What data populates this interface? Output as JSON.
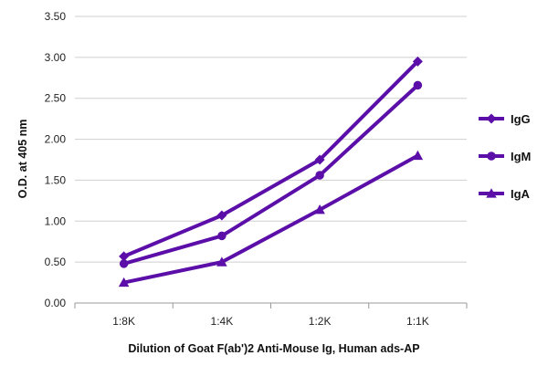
{
  "chart_data": {
    "type": "line",
    "title": "",
    "xlabel": "Dilution of Goat F(ab')2 Anti-Mouse Ig, Human ads-AP",
    "ylabel": "O.D. at 405 nm",
    "categories": [
      "1:8K",
      "1:4K",
      "1:2K",
      "1:1K"
    ],
    "ylim": [
      0,
      3.5
    ],
    "yticks": [
      "0.00",
      "0.50",
      "1.00",
      "1.50",
      "2.00",
      "2.50",
      "3.00",
      "3.50"
    ],
    "grid": true,
    "legend_position": "right",
    "series": [
      {
        "name": "IgG",
        "marker": "diamond",
        "color": "#5b0fa8",
        "values": [
          0.57,
          1.07,
          1.75,
          2.95
        ]
      },
      {
        "name": "IgM",
        "marker": "circle",
        "color": "#5b0fa8",
        "values": [
          0.48,
          0.82,
          1.56,
          2.66
        ]
      },
      {
        "name": "IgA",
        "marker": "triangle",
        "color": "#5b0fa8",
        "values": [
          0.25,
          0.5,
          1.14,
          1.8
        ]
      }
    ]
  }
}
